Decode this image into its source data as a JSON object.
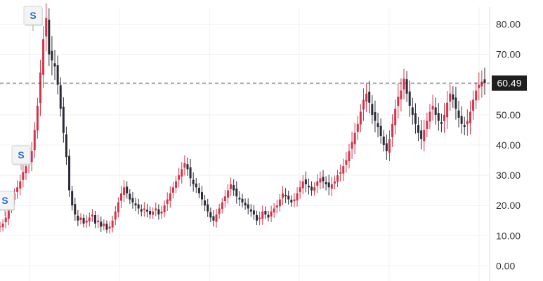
{
  "chart_data": {
    "type": "candlestick",
    "ylim": [
      -5,
      88
    ],
    "y_ticks": [
      "0.00",
      "10.00",
      "20.00",
      "30.00",
      "40.00",
      "50.00",
      "60.00",
      "70.00",
      "80.00"
    ],
    "last_price": {
      "value": 60.49,
      "label": "60.49"
    },
    "split_markers": [
      {
        "label": "S",
        "close": 15
      },
      {
        "label": "S",
        "close": 36
      },
      {
        "label": "S",
        "close": 82
      }
    ],
    "closes": [
      13,
      14,
      16,
      19,
      22,
      24,
      26,
      28,
      31,
      33,
      35,
      38,
      45,
      53,
      64,
      75,
      82,
      70,
      68,
      66,
      60,
      52,
      44,
      36,
      25,
      20,
      17,
      15,
      16,
      14,
      15,
      16,
      17,
      14,
      15,
      13,
      14,
      12,
      13,
      15,
      18,
      21,
      24,
      26,
      24,
      22,
      21,
      20,
      19,
      18,
      19,
      18,
      17,
      18,
      19,
      17,
      18,
      20,
      22,
      24,
      26,
      28,
      30,
      32,
      34,
      32,
      29,
      27,
      26,
      24,
      22,
      20,
      18,
      16,
      15,
      17,
      19,
      21,
      23,
      25,
      27,
      25,
      23,
      22,
      21,
      20,
      19,
      18,
      17,
      15,
      16,
      18,
      17,
      16,
      18,
      19,
      20,
      22,
      24,
      23,
      22,
      21,
      22,
      24,
      26,
      28,
      27,
      26,
      25,
      26,
      28,
      29,
      28,
      27,
      26,
      27,
      28,
      30,
      31,
      33,
      35,
      38,
      41,
      44,
      47,
      51,
      55,
      57,
      54,
      50,
      48,
      46,
      43,
      40,
      38,
      42,
      47,
      52,
      56,
      58,
      62,
      57,
      53,
      50,
      47,
      44,
      42,
      45,
      48,
      51,
      53,
      50,
      48,
      47,
      50,
      54,
      57,
      55,
      52,
      49,
      47,
      46,
      48,
      51,
      55,
      58,
      60,
      61,
      60.49
    ]
  }
}
